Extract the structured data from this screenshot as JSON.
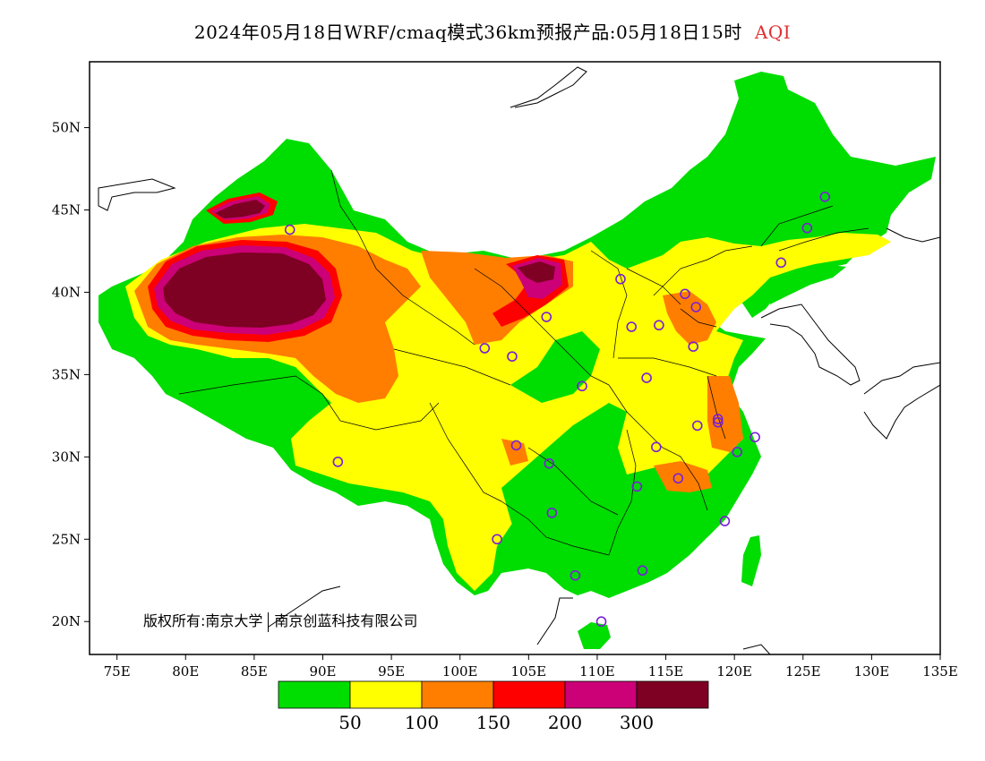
{
  "title": {
    "main": "2024年05月18日WRF/cmaq模式36km预报产品:05月18日15时",
    "variable": "AQI"
  },
  "axes": {
    "x_ticks": [
      "75E",
      "80E",
      "85E",
      "90E",
      "95E",
      "100E",
      "105E",
      "110E",
      "115E",
      "120E",
      "125E",
      "130E",
      "135E"
    ],
    "y_ticks": [
      "50N",
      "45N",
      "40N",
      "35N",
      "30N",
      "25N",
      "20N"
    ]
  },
  "legend": {
    "colors": [
      "#00dd00",
      "#ffff00",
      "#ff7e00",
      "#ff0000",
      "#cc0077",
      "#7e0023"
    ],
    "labels": [
      "50",
      "100",
      "150",
      "200",
      "300"
    ]
  },
  "copyright": {
    "owner": "版权所有:南京大学",
    "partner": "南京创蓝科技有限公司"
  },
  "stations": [
    {
      "lon": 126.6,
      "lat": 45.8
    },
    {
      "lon": 125.3,
      "lat": 43.9
    },
    {
      "lon": 123.4,
      "lat": 41.8
    },
    {
      "lon": 111.7,
      "lat": 40.8
    },
    {
      "lon": 116.4,
      "lat": 39.9
    },
    {
      "lon": 117.2,
      "lat": 39.1
    },
    {
      "lon": 114.5,
      "lat": 38.0
    },
    {
      "lon": 112.5,
      "lat": 37.9
    },
    {
      "lon": 117.0,
      "lat": 36.7
    },
    {
      "lon": 106.3,
      "lat": 38.5
    },
    {
      "lon": 101.8,
      "lat": 36.6
    },
    {
      "lon": 103.8,
      "lat": 36.1
    },
    {
      "lon": 108.9,
      "lat": 34.3
    },
    {
      "lon": 113.6,
      "lat": 34.8
    },
    {
      "lon": 117.3,
      "lat": 31.9
    },
    {
      "lon": 118.8,
      "lat": 32.1
    },
    {
      "lon": 121.5,
      "lat": 31.2
    },
    {
      "lon": 120.2,
      "lat": 30.3
    },
    {
      "lon": 114.3,
      "lat": 30.6
    },
    {
      "lon": 104.1,
      "lat": 30.7
    },
    {
      "lon": 106.5,
      "lat": 29.6
    },
    {
      "lon": 115.9,
      "lat": 28.7
    },
    {
      "lon": 112.9,
      "lat": 28.2
    },
    {
      "lon": 106.7,
      "lat": 26.6
    },
    {
      "lon": 119.3,
      "lat": 26.1
    },
    {
      "lon": 102.7,
      "lat": 25.0
    },
    {
      "lon": 108.4,
      "lat": 22.8
    },
    {
      "lon": 113.3,
      "lat": 23.1
    },
    {
      "lon": 110.3,
      "lat": 20.0
    },
    {
      "lon": 91.1,
      "lat": 29.7
    },
    {
      "lon": 87.6,
      "lat": 43.8
    },
    {
      "lon": 118.8,
      "lat": 32.3
    }
  ]
}
